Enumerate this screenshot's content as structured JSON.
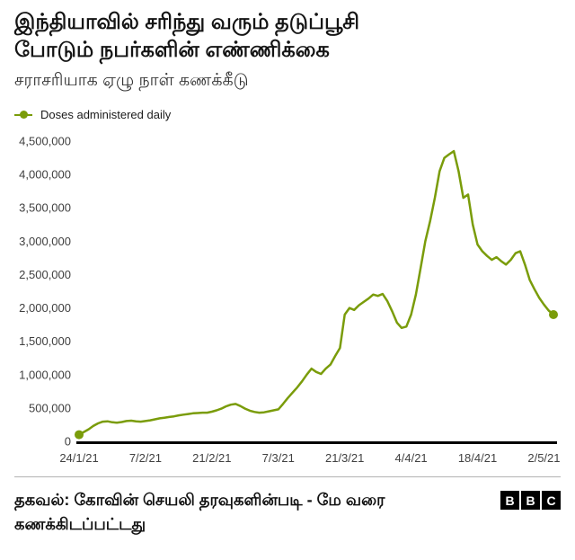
{
  "header": {
    "title_lines": [
      "இந்தியாவில் சரிந்து வரும் தடுப்பூசி",
      "போடும் நபர்களின் எண்ணிக்கை"
    ],
    "subtitle": "சராசரியாக ஏழு நாள் கணக்கீடு"
  },
  "legend": {
    "label": "Doses administered daily",
    "color": "#7a9c0a"
  },
  "chart_data": {
    "type": "line",
    "title": "இந்தியாவில் சரிந்து வரும் தடுப்பூசி போடும் நபர்களின் எண்ணிக்கை",
    "subtitle": "சராசரியாக ஏழு நாள் கணக்கீடு",
    "xlabel": "",
    "ylabel": "",
    "x_unit": "days since 24/1/21",
    "x_range": [
      0,
      100
    ],
    "x_ticks": [
      {
        "day": 0,
        "label": "24/1/21"
      },
      {
        "day": 14,
        "label": "7/2/21"
      },
      {
        "day": 28,
        "label": "21/2/21"
      },
      {
        "day": 42,
        "label": "7/3/21"
      },
      {
        "day": 56,
        "label": "21/3/21"
      },
      {
        "day": 70,
        "label": "4/4/21"
      },
      {
        "day": 84,
        "label": "18/4/21"
      },
      {
        "day": 98,
        "label": "2/5/21"
      }
    ],
    "ylim": [
      0,
      4500000
    ],
    "y_ticks": [
      0,
      500000,
      1000000,
      1500000,
      2000000,
      2500000,
      3000000,
      3500000,
      4000000,
      4500000
    ],
    "y_tick_labels": [
      "0",
      "500,000",
      "1,000,000",
      "1,500,000",
      "2,000,000",
      "2,500,000",
      "3,000,000",
      "3,500,000",
      "4,000,000",
      "4,500,000"
    ],
    "grid": false,
    "legend_position": "top-left",
    "series": [
      {
        "name": "Doses administered daily",
        "color": "#7a9c0a",
        "points": [
          [
            0,
            100000
          ],
          [
            1,
            140000
          ],
          [
            2,
            180000
          ],
          [
            3,
            230000
          ],
          [
            4,
            270000
          ],
          [
            5,
            295000
          ],
          [
            6,
            300000
          ],
          [
            7,
            285000
          ],
          [
            8,
            280000
          ],
          [
            9,
            290000
          ],
          [
            10,
            305000
          ],
          [
            11,
            310000
          ],
          [
            12,
            300000
          ],
          [
            13,
            295000
          ],
          [
            14,
            305000
          ],
          [
            15,
            315000
          ],
          [
            16,
            330000
          ],
          [
            17,
            345000
          ],
          [
            18,
            355000
          ],
          [
            19,
            365000
          ],
          [
            20,
            375000
          ],
          [
            21,
            390000
          ],
          [
            22,
            400000
          ],
          [
            23,
            410000
          ],
          [
            24,
            420000
          ],
          [
            25,
            425000
          ],
          [
            26,
            430000
          ],
          [
            27,
            430000
          ],
          [
            28,
            445000
          ],
          [
            29,
            465000
          ],
          [
            30,
            490000
          ],
          [
            31,
            525000
          ],
          [
            32,
            550000
          ],
          [
            33,
            560000
          ],
          [
            34,
            530000
          ],
          [
            35,
            490000
          ],
          [
            36,
            460000
          ],
          [
            37,
            440000
          ],
          [
            38,
            430000
          ],
          [
            39,
            435000
          ],
          [
            40,
            450000
          ],
          [
            41,
            465000
          ],
          [
            42,
            480000
          ],
          [
            43,
            560000
          ],
          [
            44,
            650000
          ],
          [
            45,
            730000
          ],
          [
            46,
            810000
          ],
          [
            47,
            900000
          ],
          [
            48,
            1000000
          ],
          [
            49,
            1090000
          ],
          [
            50,
            1040000
          ],
          [
            51,
            1010000
          ],
          [
            52,
            1090000
          ],
          [
            53,
            1150000
          ],
          [
            54,
            1280000
          ],
          [
            55,
            1400000
          ],
          [
            56,
            1900000
          ],
          [
            57,
            2000000
          ],
          [
            58,
            1970000
          ],
          [
            59,
            2040000
          ],
          [
            60,
            2090000
          ],
          [
            61,
            2140000
          ],
          [
            62,
            2200000
          ],
          [
            63,
            2180000
          ],
          [
            64,
            2210000
          ],
          [
            65,
            2100000
          ],
          [
            66,
            1950000
          ],
          [
            67,
            1780000
          ],
          [
            68,
            1700000
          ],
          [
            69,
            1720000
          ],
          [
            70,
            1900000
          ],
          [
            71,
            2200000
          ],
          [
            72,
            2600000
          ],
          [
            73,
            3000000
          ],
          [
            74,
            3300000
          ],
          [
            75,
            3650000
          ],
          [
            76,
            4050000
          ],
          [
            77,
            4250000
          ],
          [
            78,
            4300000
          ],
          [
            79,
            4350000
          ],
          [
            80,
            4050000
          ],
          [
            81,
            3650000
          ],
          [
            82,
            3700000
          ],
          [
            83,
            3250000
          ],
          [
            84,
            2950000
          ],
          [
            85,
            2850000
          ],
          [
            86,
            2780000
          ],
          [
            87,
            2720000
          ],
          [
            88,
            2760000
          ],
          [
            89,
            2700000
          ],
          [
            90,
            2650000
          ],
          [
            91,
            2720000
          ],
          [
            92,
            2820000
          ],
          [
            93,
            2850000
          ],
          [
            94,
            2650000
          ],
          [
            95,
            2420000
          ],
          [
            96,
            2280000
          ],
          [
            97,
            2150000
          ],
          [
            98,
            2050000
          ],
          [
            99,
            1960000
          ],
          [
            100,
            1900000
          ]
        ]
      }
    ],
    "markers": {
      "start_point": [
        0,
        100000
      ],
      "end_point": [
        100,
        1900000
      ]
    }
  },
  "footer": {
    "source_lines": [
      "தகவல்: கோவின் செயலி தரவுகளின்படி - மே வரை",
      "கணக்கிடப்பட்டது"
    ],
    "logo_letters": [
      "B",
      "B",
      "C"
    ]
  }
}
